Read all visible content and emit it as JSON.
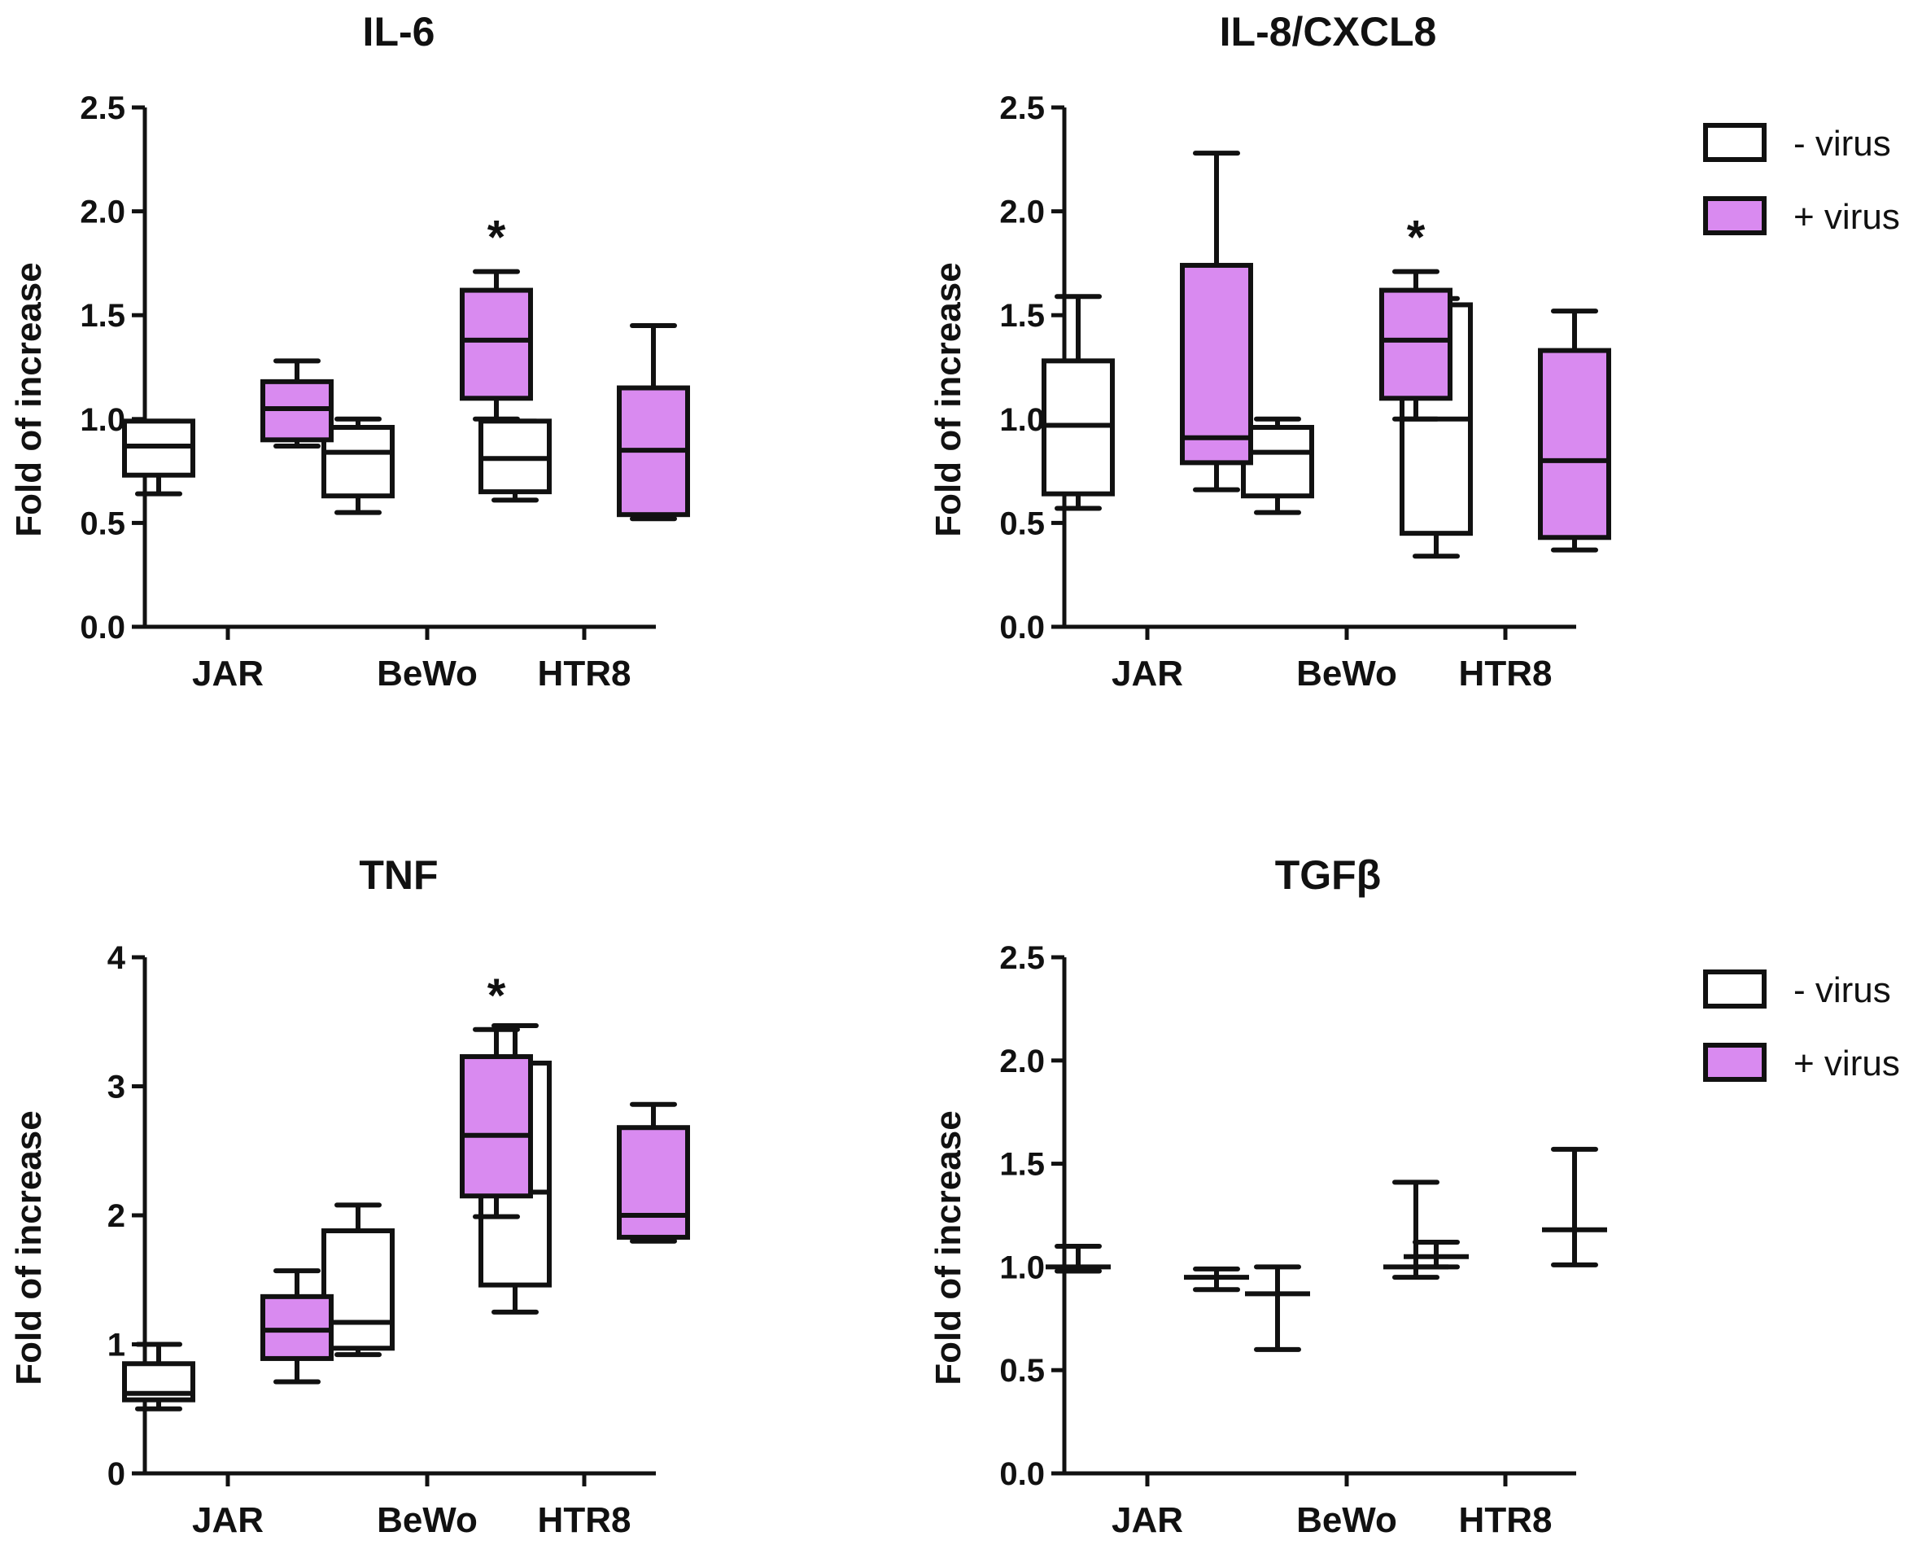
{
  "colors": {
    "minus_virus": "#ffffff",
    "plus_virus": "#d98af0",
    "stroke": "#111111"
  },
  "legend": [
    {
      "label": "- virus",
      "group": "minus"
    },
    {
      "label": "+ virus",
      "group": "plus"
    }
  ],
  "chart_data": [
    {
      "type": "box",
      "title": "IL-6",
      "ylabel": "Fold of increase",
      "ylim": [
        0,
        2.5
      ],
      "yticks": [
        "0.0",
        "0.5",
        "1.0",
        "1.5",
        "2.0",
        "2.5"
      ],
      "categories": [
        "JAR",
        "BeWo",
        "HTR8"
      ],
      "series": [
        {
          "name": "- virus",
          "group": "minus",
          "boxes": [
            {
              "min": 0.64,
              "q1": 0.73,
              "median": 0.87,
              "q3": 0.99,
              "max": 0.99
            },
            {
              "min": 0.55,
              "q1": 0.63,
              "median": 0.84,
              "q3": 0.96,
              "max": 1.0
            },
            {
              "min": 0.61,
              "q1": 0.65,
              "median": 0.81,
              "q3": 0.99,
              "max": 0.99
            }
          ]
        },
        {
          "name": "+ virus",
          "group": "plus",
          "boxes": [
            {
              "min": 0.87,
              "q1": 0.9,
              "median": 1.05,
              "q3": 1.18,
              "max": 1.28
            },
            {
              "min": 1.0,
              "q1": 1.1,
              "median": 1.38,
              "q3": 1.62,
              "max": 1.71
            },
            {
              "min": 0.52,
              "q1": 0.54,
              "median": 0.85,
              "q3": 1.15,
              "max": 1.45
            }
          ]
        }
      ],
      "annotations": [
        {
          "category": "BeWo",
          "group": "plus",
          "text": "*"
        }
      ],
      "show_legend": false
    },
    {
      "type": "box",
      "title": "IL-8/CXCL8",
      "ylabel": "Fold of increase",
      "ylim": [
        0,
        2.5
      ],
      "yticks": [
        "0.0",
        "0.5",
        "1.0",
        "1.5",
        "2.0",
        "2.5"
      ],
      "categories": [
        "JAR",
        "BeWo",
        "HTR8"
      ],
      "series": [
        {
          "name": "- virus",
          "group": "minus",
          "boxes": [
            {
              "min": 0.57,
              "q1": 0.64,
              "median": 0.97,
              "q3": 1.28,
              "max": 1.59
            },
            {
              "min": 0.55,
              "q1": 0.63,
              "median": 0.84,
              "q3": 0.96,
              "max": 1.0
            },
            {
              "min": 0.34,
              "q1": 0.45,
              "median": 1.0,
              "q3": 1.55,
              "max": 1.58
            }
          ]
        },
        {
          "name": "+ virus",
          "group": "plus",
          "boxes": [
            {
              "min": 0.66,
              "q1": 0.79,
              "median": 0.91,
              "q3": 1.74,
              "max": 2.28
            },
            {
              "min": 1.0,
              "q1": 1.1,
              "median": 1.38,
              "q3": 1.62,
              "max": 1.71
            },
            {
              "min": 0.37,
              "q1": 0.43,
              "median": 0.8,
              "q3": 1.33,
              "max": 1.52
            }
          ]
        }
      ],
      "annotations": [
        {
          "category": "BeWo",
          "group": "plus",
          "text": "*"
        }
      ],
      "show_legend": true
    },
    {
      "type": "box",
      "title": "TNF",
      "ylabel": "Fold of increase",
      "ylim": [
        0,
        4
      ],
      "yticks": [
        "0",
        "1",
        "2",
        "3",
        "4"
      ],
      "categories": [
        "JAR",
        "BeWo",
        "HTR8"
      ],
      "series": [
        {
          "name": "- virus",
          "group": "minus",
          "boxes": [
            {
              "min": 0.5,
              "q1": 0.57,
              "median": 0.62,
              "q3": 0.85,
              "max": 1.0
            },
            {
              "min": 0.92,
              "q1": 0.97,
              "median": 1.17,
              "q3": 1.88,
              "max": 2.08
            },
            {
              "min": 1.25,
              "q1": 1.46,
              "median": 2.18,
              "q3": 3.18,
              "max": 3.47
            }
          ]
        },
        {
          "name": "+ virus",
          "group": "plus",
          "boxes": [
            {
              "min": 0.71,
              "q1": 0.89,
              "median": 1.11,
              "q3": 1.37,
              "max": 1.57
            },
            {
              "min": 1.99,
              "q1": 2.15,
              "median": 2.62,
              "q3": 3.23,
              "max": 3.44
            },
            {
              "min": 1.8,
              "q1": 1.83,
              "median": 2.0,
              "q3": 2.68,
              "max": 2.86
            }
          ]
        }
      ],
      "annotations": [
        {
          "category": "BeWo",
          "group": "plus",
          "text": "*"
        }
      ],
      "show_legend": false
    },
    {
      "type": "box",
      "title": "TGFβ",
      "ylabel": "Fold of increase",
      "ylim": [
        0,
        2.5
      ],
      "yticks": [
        "0.0",
        "0.5",
        "1.0",
        "1.5",
        "2.0",
        "2.5"
      ],
      "categories": [
        "JAR",
        "BeWo",
        "HTR8"
      ],
      "series": [
        {
          "name": "- virus",
          "group": "minus",
          "boxes": [
            {
              "min": 0.98,
              "q1": 1.0,
              "median": 1.0,
              "q3": 1.0,
              "max": 1.1
            },
            {
              "min": 0.6,
              "q1": 0.87,
              "median": 0.87,
              "q3": 0.87,
              "max": 1.0
            },
            {
              "min": 1.0,
              "q1": 1.05,
              "median": 1.05,
              "q3": 1.05,
              "max": 1.12
            }
          ]
        },
        {
          "name": "+ virus",
          "group": "plus",
          "boxes": [
            {
              "min": 0.89,
              "q1": 0.95,
              "median": 0.95,
              "q3": 0.95,
              "max": 0.99
            },
            {
              "min": 0.95,
              "q1": 1.0,
              "median": 1.0,
              "q3": 1.0,
              "max": 1.41
            },
            {
              "min": 1.01,
              "q1": 1.18,
              "median": 1.18,
              "q3": 1.18,
              "max": 1.57
            }
          ]
        }
      ],
      "annotations": [],
      "show_legend": true
    }
  ]
}
